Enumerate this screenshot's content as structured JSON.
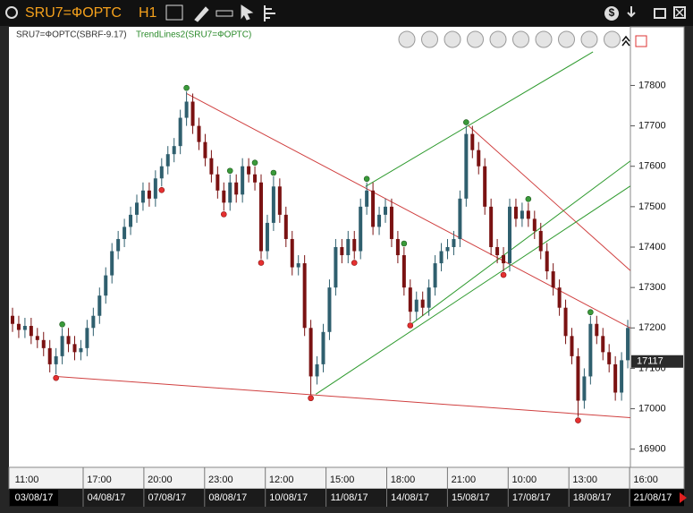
{
  "window": {
    "symbol": "SRU7=ФОРТС",
    "timeframe": "H1"
  },
  "chart_data": {
    "type": "candlestick",
    "legend": {
      "main": "SRU7=ФОРТС(SBRF-9.17)",
      "indicator": "TrendLines2(SRU7=ФОРТС)",
      "indicator_color": "#2a8a2a"
    },
    "up_color": "#2f5f6e",
    "down_color": "#7a1212",
    "open": [
      17230,
      17210,
      17195,
      17205,
      17180,
      17170,
      17150,
      17110,
      17130,
      17180,
      17160,
      17140,
      17150,
      17200,
      17230,
      17280,
      17330,
      17390,
      17420,
      17450,
      17480,
      17510,
      17540,
      17520,
      17570,
      17600,
      17630,
      17650,
      17720,
      17760,
      17700,
      17660,
      17620,
      17580,
      17540,
      17510,
      17560,
      17530,
      17600,
      17580,
      17560,
      17390,
      17460,
      17550,
      17480,
      17420,
      17350,
      17360,
      17200,
      17080,
      17110,
      17190,
      17300,
      17400,
      17380,
      17420,
      17390,
      17500,
      17540,
      17450,
      17480,
      17500,
      17420,
      17380,
      17300,
      17240,
      17270,
      17250,
      17300,
      17360,
      17390,
      17400,
      17420,
      17520,
      17680,
      17640,
      17600,
      17500,
      17400,
      17380,
      17360,
      17500,
      17470,
      17490,
      17470,
      17440,
      17390,
      17340,
      17300,
      17250,
      17180,
      17130,
      17020,
      17080,
      17210,
      17180,
      17140,
      17110,
      17040,
      17120
    ],
    "high": [
      17250,
      17230,
      17225,
      17225,
      17200,
      17190,
      17170,
      17150,
      17200,
      17200,
      17180,
      17170,
      17220,
      17250,
      17300,
      17350,
      17410,
      17440,
      17470,
      17500,
      17530,
      17560,
      17560,
      17590,
      17620,
      17650,
      17670,
      17740,
      17785,
      17780,
      17720,
      17680,
      17640,
      17600,
      17560,
      17580,
      17580,
      17620,
      17620,
      17600,
      17580,
      17480,
      17575,
      17570,
      17500,
      17440,
      17380,
      17380,
      17220,
      17130,
      17210,
      17320,
      17420,
      17420,
      17440,
      17440,
      17520,
      17560,
      17560,
      17500,
      17520,
      17520,
      17440,
      17400,
      17320,
      17290,
      17290,
      17320,
      17380,
      17410,
      17420,
      17440,
      17540,
      17700,
      17700,
      17660,
      17620,
      17520,
      17420,
      17400,
      17520,
      17520,
      17510,
      17510,
      17490,
      17460,
      17410,
      17360,
      17320,
      17270,
      17200,
      17150,
      17100,
      17230,
      17230,
      17200,
      17160,
      17130,
      17140,
      17220
    ],
    "low": [
      17190,
      17175,
      17175,
      17160,
      17150,
      17130,
      17090,
      17085,
      17110,
      17140,
      17120,
      17120,
      17130,
      17180,
      17210,
      17260,
      17310,
      17370,
      17400,
      17430,
      17460,
      17490,
      17500,
      17500,
      17550,
      17580,
      17610,
      17630,
      17700,
      17680,
      17640,
      17600,
      17560,
      17520,
      17490,
      17490,
      17510,
      17510,
      17560,
      17540,
      17370,
      17370,
      17440,
      17460,
      17400,
      17330,
      17330,
      17180,
      17035,
      17060,
      17090,
      17170,
      17280,
      17360,
      17360,
      17370,
      17370,
      17480,
      17430,
      17430,
      17460,
      17400,
      17360,
      17280,
      17215,
      17220,
      17230,
      17230,
      17280,
      17340,
      17370,
      17380,
      17400,
      17500,
      17620,
      17580,
      17480,
      17380,
      17360,
      17340,
      17340,
      17450,
      17450,
      17450,
      17420,
      17370,
      17320,
      17280,
      17230,
      17160,
      17110,
      16980,
      17000,
      17060,
      17160,
      17120,
      17090,
      17020,
      17020,
      17100
    ],
    "close": [
      17210,
      17195,
      17205,
      17180,
      17170,
      17150,
      17110,
      17130,
      17180,
      17160,
      17140,
      17150,
      17200,
      17230,
      17280,
      17330,
      17390,
      17420,
      17450,
      17480,
      17510,
      17540,
      17520,
      17570,
      17600,
      17630,
      17650,
      17720,
      17760,
      17700,
      17660,
      17620,
      17580,
      17540,
      17510,
      17560,
      17530,
      17600,
      17580,
      17560,
      17390,
      17460,
      17550,
      17480,
      17420,
      17350,
      17360,
      17200,
      17080,
      17110,
      17190,
      17300,
      17400,
      17380,
      17420,
      17390,
      17500,
      17540,
      17450,
      17480,
      17500,
      17420,
      17380,
      17300,
      17240,
      17270,
      17250,
      17300,
      17360,
      17390,
      17400,
      17420,
      17520,
      17680,
      17640,
      17600,
      17500,
      17400,
      17380,
      17360,
      17500,
      17470,
      17490,
      17470,
      17440,
      17390,
      17340,
      17300,
      17250,
      17180,
      17130,
      17020,
      17080,
      17210,
      17180,
      17140,
      17110,
      17040,
      17120,
      17200
    ],
    "fractal_up": [
      8,
      28,
      35,
      39,
      42,
      57,
      63,
      73,
      83,
      93
    ],
    "fractal_up_color": "#3a9a3a",
    "fractal_down": [
      7,
      24,
      34,
      40,
      48,
      55,
      64,
      79,
      91
    ],
    "fractal_down_color": "#e53030",
    "trendlines": [
      {
        "color": "#d04040",
        "points": [
          [
            28,
            17780
          ],
          [
            99.4,
            17200
          ]
        ]
      },
      {
        "color": "#d04040",
        "points": [
          [
            7,
            17080
          ],
          [
            99.4,
            16978
          ]
        ]
      },
      {
        "color": "#d04040",
        "points": [
          [
            73.4,
            17700
          ],
          [
            99.4,
            17342
          ]
        ]
      },
      {
        "color": "#2e9a2e",
        "points": [
          [
            56.8,
            17550
          ],
          [
            93.4,
            17883
          ]
        ]
      },
      {
        "color": "#2e9a2e",
        "points": [
          [
            48.8,
            17036
          ],
          [
            99.4,
            17551
          ]
        ]
      },
      {
        "color": "#2e9a2e",
        "points": [
          [
            64.3,
            17211
          ],
          [
            99.4,
            17613
          ]
        ]
      }
    ],
    "last_price": 17117,
    "ylim": [
      16855,
      17945
    ],
    "yticks": [
      16900,
      17000,
      17100,
      17200,
      17300,
      17400,
      17500,
      17600,
      17700,
      17800
    ],
    "grid": false,
    "time_labels": [
      "11:00",
      "17:00",
      "20:00",
      "23:00",
      "12:00",
      "15:00",
      "18:00",
      "21:00",
      "10:00",
      "13:00",
      "16:00"
    ],
    "date_labels": [
      "03/08/17",
      "04/08/17",
      "07/08/17",
      "08/08/17",
      "10/08/17",
      "11/08/17",
      "14/08/17",
      "15/08/17",
      "17/08/17",
      "18/08/17",
      "21/08/17"
    ]
  }
}
